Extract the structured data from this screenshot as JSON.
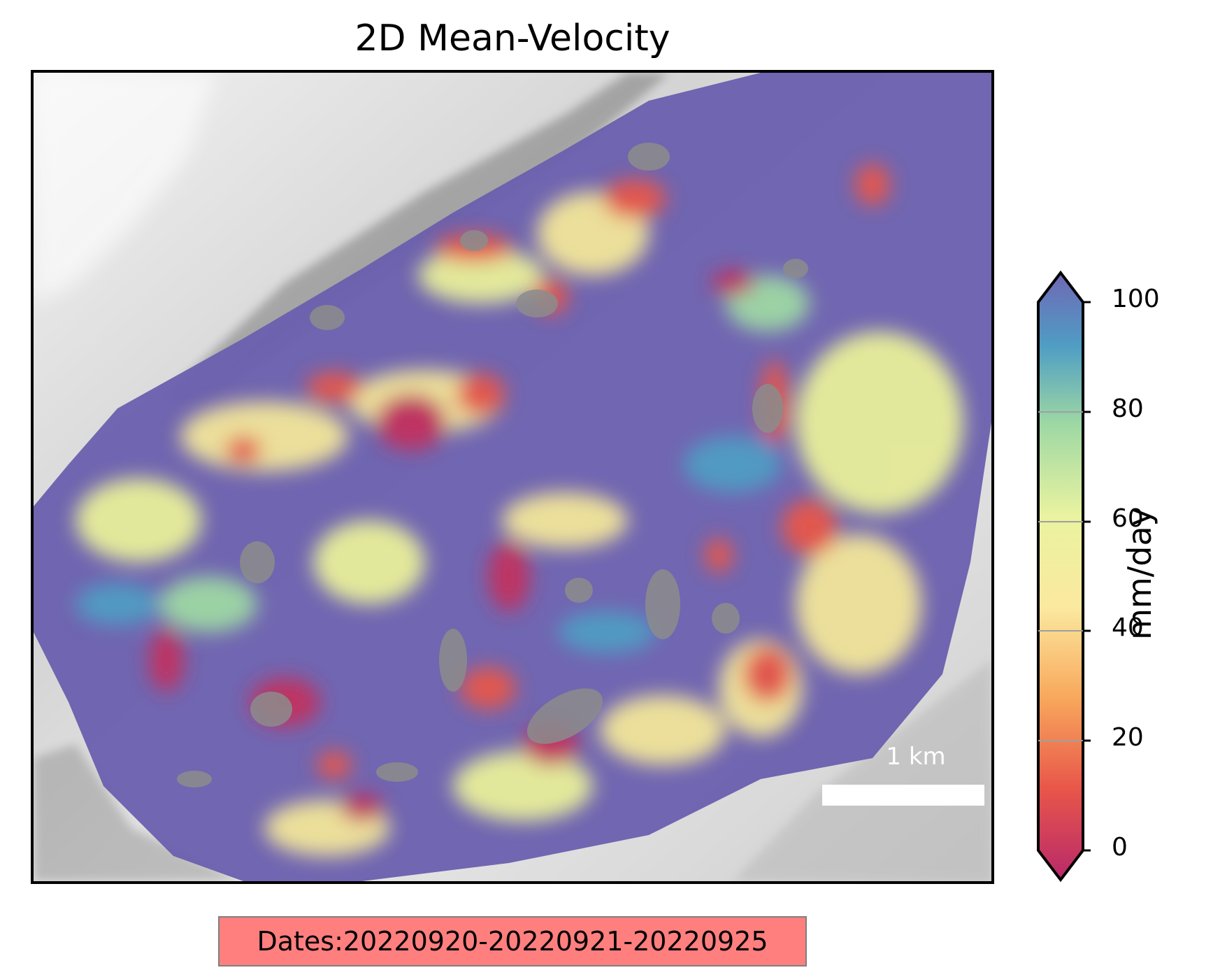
{
  "title": "2D Mean-Velocity",
  "map": {
    "description_type": "velocity heatmap over hillshade terrain",
    "scale_bar_label": "1 km"
  },
  "colorbar": {
    "colormap": "Spectral",
    "min": 0,
    "max": 100,
    "extend": "both",
    "ticks": [
      "0",
      "20",
      "40",
      "60",
      "80",
      "100"
    ],
    "label": "mm/day",
    "colors": [
      "#b8296a",
      "#e8564a",
      "#f8a85c",
      "#fbe9a0",
      "#e9f3a0",
      "#9ed8a4",
      "#4f9dc4",
      "#6f67b5"
    ]
  },
  "dates_label": "Dates:20220920-20220921-20220925",
  "colors": {
    "low_velocity": "#c2305f",
    "mid_velocity": "#f3e69a",
    "high_velocity": "#6a5fae",
    "dates_box": "#ff7f7f"
  }
}
